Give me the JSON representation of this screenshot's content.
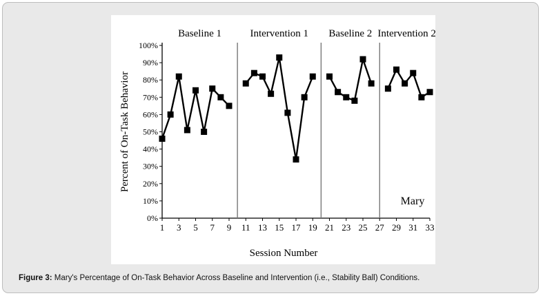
{
  "caption": {
    "label": "Figure 3:",
    "text": " Mary's Percentage of On-Task Behavior Across Baseline and Intervention (i.e., Stability Ball) Conditions."
  },
  "chart_data": {
    "type": "line",
    "ylabel": "Percent of On-Task Behavior",
    "xlabel": "Session Number",
    "ylim": [
      0,
      100
    ],
    "xlim": [
      1,
      33
    ],
    "yticks": [
      "0%",
      "10%",
      "20%",
      "30%",
      "40%",
      "50%",
      "60%",
      "70%",
      "80%",
      "90%",
      "100%"
    ],
    "xticks": [
      1,
      3,
      5,
      7,
      9,
      11,
      13,
      15,
      17,
      19,
      21,
      23,
      25,
      27,
      29,
      31,
      33
    ],
    "annotation": "Mary",
    "phase_changes": [
      10,
      20,
      27
    ],
    "series": [
      {
        "phase": "Baseline 1",
        "x": [
          1,
          2,
          3,
          4,
          5,
          6,
          7,
          8,
          9
        ],
        "y": [
          46,
          60,
          82,
          51,
          74,
          50,
          75,
          70,
          65
        ]
      },
      {
        "phase": "Intervention 1",
        "x": [
          11,
          12,
          13,
          14,
          15,
          16,
          17,
          18,
          19
        ],
        "y": [
          78,
          84,
          82,
          72,
          93,
          61,
          34,
          70,
          82
        ]
      },
      {
        "phase": "Baseline 2",
        "x": [
          21,
          22,
          23,
          24,
          25,
          26
        ],
        "y": [
          82,
          73,
          70,
          68,
          92,
          78
        ]
      },
      {
        "phase": "Intervention 2",
        "x": [
          28,
          29,
          30,
          31,
          32,
          33
        ],
        "y": [
          75,
          86,
          78,
          84,
          70,
          73
        ]
      }
    ]
  }
}
